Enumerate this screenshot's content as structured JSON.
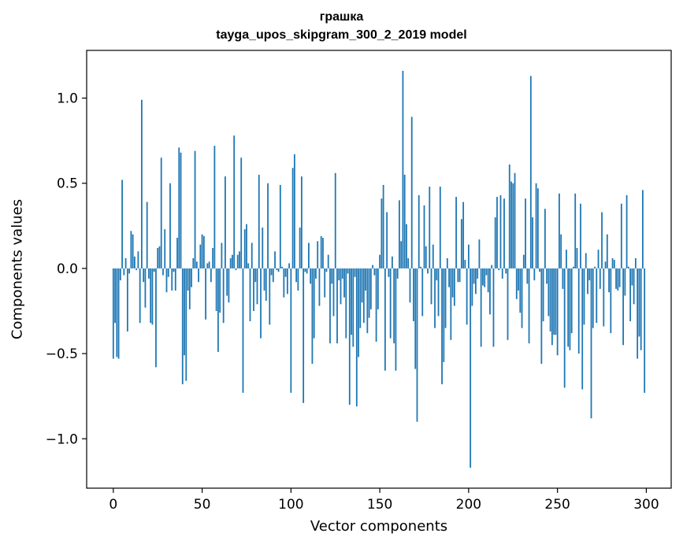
{
  "chart_data": {
    "type": "bar",
    "title_line1": "грашка",
    "title_line2": "tayga_upos_skipgram_300_2_2019 model",
    "xlabel": "Vector components",
    "ylabel": "Components values",
    "xlim": [
      -15,
      314
    ],
    "ylim": [
      -1.29,
      1.28
    ],
    "x_ticks": [
      0,
      50,
      100,
      150,
      200,
      250,
      300
    ],
    "x_tick_labels": [
      "0",
      "50",
      "100",
      "150",
      "200",
      "250",
      "300"
    ],
    "y_ticks": [
      -1.0,
      -0.5,
      0.0,
      0.5,
      1.0
    ],
    "y_tick_labels": [
      "−1.0",
      "−0.5",
      "0.0",
      "0.5",
      "1.0"
    ],
    "bar_color": "#1f77b4",
    "grid": false,
    "x": [
      0,
      1,
      2,
      3,
      4,
      5,
      6,
      7,
      8,
      9,
      10,
      11,
      12,
      13,
      14,
      15,
      16,
      17,
      18,
      19,
      20,
      21,
      22,
      23,
      24,
      25,
      26,
      27,
      28,
      29,
      30,
      31,
      32,
      33,
      34,
      35,
      36,
      37,
      38,
      39,
      40,
      41,
      42,
      43,
      44,
      45,
      46,
      47,
      48,
      49,
      50,
      51,
      52,
      53,
      54,
      55,
      56,
      57,
      58,
      59,
      60,
      61,
      62,
      63,
      64,
      65,
      66,
      67,
      68,
      69,
      70,
      71,
      72,
      73,
      74,
      75,
      76,
      77,
      78,
      79,
      80,
      81,
      82,
      83,
      84,
      85,
      86,
      87,
      88,
      89,
      90,
      91,
      92,
      93,
      94,
      95,
      96,
      97,
      98,
      99,
      100,
      101,
      102,
      103,
      104,
      105,
      106,
      107,
      108,
      109,
      110,
      111,
      112,
      113,
      114,
      115,
      116,
      117,
      118,
      119,
      120,
      121,
      122,
      123,
      124,
      125,
      126,
      127,
      128,
      129,
      130,
      131,
      132,
      133,
      134,
      135,
      136,
      137,
      138,
      139,
      140,
      141,
      142,
      143,
      144,
      145,
      146,
      147,
      148,
      149,
      150,
      151,
      152,
      153,
      154,
      155,
      156,
      157,
      158,
      159,
      160,
      161,
      162,
      163,
      164,
      165,
      166,
      167,
      168,
      169,
      170,
      171,
      172,
      173,
      174,
      175,
      176,
      177,
      178,
      179,
      180,
      181,
      182,
      183,
      184,
      185,
      186,
      187,
      188,
      189,
      190,
      191,
      192,
      193,
      194,
      195,
      196,
      197,
      198,
      199,
      200,
      201,
      202,
      203,
      204,
      205,
      206,
      207,
      208,
      209,
      210,
      211,
      212,
      213,
      214,
      215,
      216,
      217,
      218,
      219,
      220,
      221,
      222,
      223,
      224,
      225,
      226,
      227,
      228,
      229,
      230,
      231,
      232,
      233,
      234,
      235,
      236,
      237,
      238,
      239,
      240,
      241,
      242,
      243,
      244,
      245,
      246,
      247,
      248,
      249,
      250,
      251,
      252,
      253,
      254,
      255,
      256,
      257,
      258,
      259,
      260,
      261,
      262,
      263,
      264,
      265,
      266,
      267,
      268,
      269,
      270,
      271,
      272,
      273,
      274,
      275,
      276,
      277,
      278,
      279,
      280,
      281,
      282,
      283,
      284,
      285,
      286,
      287,
      288,
      289,
      290,
      291,
      292,
      293,
      294,
      295,
      296,
      297,
      298,
      299
    ],
    "values": [
      -0.53,
      -0.32,
      -0.52,
      -0.53,
      -0.07,
      0.52,
      -0.04,
      0.06,
      -0.37,
      -0.03,
      0.22,
      0.2,
      0.07,
      -0.01,
      0.1,
      -0.32,
      0.99,
      -0.08,
      -0.23,
      0.39,
      -0.06,
      -0.32,
      -0.33,
      -0.02,
      -0.58,
      0.12,
      0.13,
      0.65,
      -0.04,
      0.23,
      -0.14,
      -0.05,
      0.5,
      -0.13,
      -0.02,
      -0.13,
      0.18,
      0.71,
      0.68,
      -0.68,
      -0.51,
      -0.66,
      -0.13,
      -0.24,
      -0.11,
      0.06,
      0.69,
      0.04,
      -0.08,
      0.14,
      0.2,
      0.19,
      -0.3,
      0.03,
      0.04,
      -0.08,
      0.12,
      0.72,
      -0.25,
      -0.49,
      -0.26,
      0.15,
      -0.32,
      0.54,
      -0.16,
      -0.2,
      0.06,
      0.08,
      0.78,
      -0.01,
      0.08,
      0.1,
      0.65,
      -0.73,
      0.23,
      0.26,
      0.03,
      -0.31,
      0.15,
      -0.25,
      -0.08,
      -0.21,
      0.55,
      -0.41,
      0.24,
      -0.13,
      -0.19,
      0.5,
      -0.33,
      -0.04,
      -0.08,
      0.1,
      -0.01,
      -0.02,
      0.49,
      0.01,
      -0.17,
      -0.05,
      -0.15,
      0.03,
      -0.73,
      0.59,
      0.67,
      -0.08,
      -0.13,
      0.24,
      0.54,
      -0.79,
      -0.02,
      -0.03,
      0.15,
      -0.09,
      -0.56,
      -0.41,
      -0.06,
      0.16,
      -0.22,
      0.19,
      0.18,
      -0.17,
      -0.02,
      0.08,
      -0.44,
      -0.09,
      -0.28,
      0.56,
      -0.44,
      -0.07,
      -0.21,
      -0.06,
      -0.17,
      -0.41,
      -0.03,
      -0.8,
      -0.39,
      -0.46,
      -0.05,
      -0.81,
      -0.52,
      -0.35,
      -0.2,
      -0.32,
      -0.13,
      -0.38,
      -0.29,
      -0.24,
      0.02,
      -0.04,
      -0.43,
      -0.24,
      0.08,
      0.41,
      0.49,
      -0.6,
      0.33,
      -0.05,
      -0.41,
      0.07,
      -0.44,
      -0.6,
      -0.06,
      0.4,
      0.16,
      1.16,
      0.55,
      0.26,
      0.06,
      -0.2,
      0.89,
      -0.31,
      -0.59,
      -0.9,
      0.43,
      0.01,
      -0.28,
      0.37,
      0.13,
      -0.03,
      0.48,
      -0.21,
      0.14,
      -0.35,
      -0.07,
      -0.28,
      0.48,
      -0.68,
      -0.55,
      -0.35,
      0.06,
      -0.11,
      -0.42,
      -0.17,
      -0.22,
      0.42,
      -0.08,
      -0.08,
      0.29,
      0.39,
      0.05,
      -0.33,
      0.14,
      -1.17,
      -0.22,
      -0.09,
      -0.15,
      -0.06,
      0.17,
      -0.46,
      -0.1,
      -0.11,
      -0.04,
      -0.14,
      -0.27,
      0.02,
      -0.46,
      0.3,
      0.42,
      -0.01,
      0.43,
      -0.06,
      0.41,
      -0.03,
      -0.42,
      0.61,
      0.51,
      0.5,
      0.56,
      -0.18,
      -0.13,
      -0.26,
      -0.35,
      0.08,
      0.41,
      -0.09,
      -0.44,
      1.13,
      0.3,
      -0.07,
      0.5,
      0.47,
      -0.02,
      -0.56,
      -0.31,
      0.35,
      -0.09,
      -0.28,
      -0.37,
      -0.45,
      -0.39,
      -0.39,
      -0.51,
      0.44,
      0.2,
      -0.12,
      -0.7,
      0.11,
      -0.46,
      -0.48,
      -0.38,
      0.01,
      0.44,
      0.12,
      -0.5,
      0.38,
      -0.71,
      -0.33,
      0.09,
      -0.15,
      -0.07,
      -0.88,
      -0.35,
      0.01,
      -0.32,
      0.11,
      -0.12,
      0.33,
      -0.34,
      0.04,
      0.2,
      -0.14,
      -0.38,
      0.06,
      0.05,
      -0.12,
      -0.13,
      -0.11,
      0.38,
      -0.45,
      -0.16,
      0.43,
      0.01,
      -0.31,
      -0.1,
      -0.21,
      0.06,
      -0.53,
      -0.4,
      -0.48,
      0.46,
      -0.73
    ]
  }
}
